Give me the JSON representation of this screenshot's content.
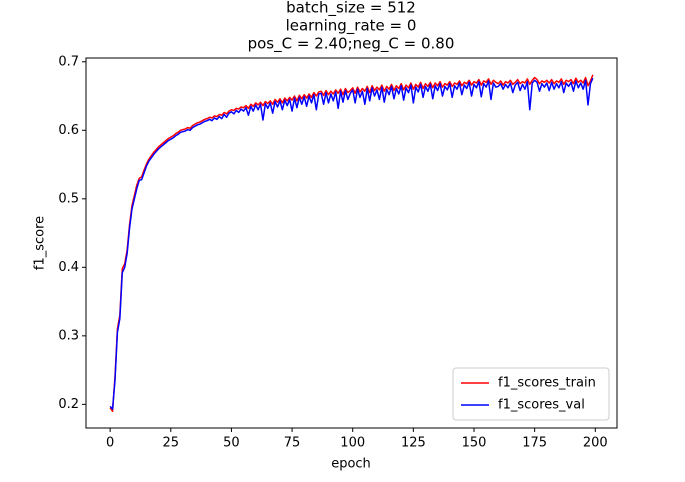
{
  "chart_data": {
    "type": "line",
    "title": [
      "batch_size = 512",
      "learning_rate = 0",
      "pos_C = 2.40;neg_C = 0.80"
    ],
    "xlabel": "epoch",
    "ylabel": "f1_score",
    "xlim": [
      -9.95,
      208.95
    ],
    "ylim": [
      0.1655,
      0.7055
    ],
    "xticks": [
      0,
      25,
      50,
      75,
      100,
      125,
      150,
      175,
      200
    ],
    "yticks": [
      0.2,
      0.3,
      0.4,
      0.5,
      0.6,
      0.7
    ],
    "legend": "lower right",
    "x": [
      0,
      1,
      2,
      3,
      4,
      5,
      6,
      7,
      8,
      9,
      10,
      11,
      12,
      13,
      14,
      15,
      16,
      17,
      18,
      19,
      20,
      21,
      22,
      23,
      24,
      25,
      26,
      27,
      28,
      29,
      30,
      31,
      32,
      33,
      34,
      35,
      36,
      37,
      38,
      39,
      40,
      41,
      42,
      43,
      44,
      45,
      46,
      47,
      48,
      49,
      50,
      51,
      52,
      53,
      54,
      55,
      56,
      57,
      58,
      59,
      60,
      61,
      62,
      63,
      64,
      65,
      66,
      67,
      68,
      69,
      70,
      71,
      72,
      73,
      74,
      75,
      76,
      77,
      78,
      79,
      80,
      81,
      82,
      83,
      84,
      85,
      86,
      87,
      88,
      89,
      90,
      91,
      92,
      93,
      94,
      95,
      96,
      97,
      98,
      99,
      100,
      101,
      102,
      103,
      104,
      105,
      106,
      107,
      108,
      109,
      110,
      111,
      112,
      113,
      114,
      115,
      116,
      117,
      118,
      119,
      120,
      121,
      122,
      123,
      124,
      125,
      126,
      127,
      128,
      129,
      130,
      131,
      132,
      133,
      134,
      135,
      136,
      137,
      138,
      139,
      140,
      141,
      142,
      143,
      144,
      145,
      146,
      147,
      148,
      149,
      150,
      151,
      152,
      153,
      154,
      155,
      156,
      157,
      158,
      159,
      160,
      161,
      162,
      163,
      164,
      165,
      166,
      167,
      168,
      169,
      170,
      171,
      172,
      173,
      174,
      175,
      176,
      177,
      178,
      179,
      180,
      181,
      182,
      183,
      184,
      185,
      186,
      187,
      188,
      189,
      190,
      191,
      192,
      193,
      194,
      195,
      196,
      197,
      198,
      199
    ],
    "series": [
      {
        "name": "f1_scores_train",
        "color": "#ff0000",
        "values": [
          0.195,
          0.19,
          0.24,
          0.31,
          0.33,
          0.398,
          0.405,
          0.425,
          0.462,
          0.49,
          0.505,
          0.52,
          0.53,
          0.532,
          0.542,
          0.551,
          0.558,
          0.563,
          0.568,
          0.572,
          0.576,
          0.579,
          0.582,
          0.585,
          0.588,
          0.59,
          0.592,
          0.595,
          0.597,
          0.6,
          0.601,
          0.602,
          0.604,
          0.603,
          0.607,
          0.609,
          0.611,
          0.612,
          0.614,
          0.616,
          0.617,
          0.619,
          0.618,
          0.621,
          0.62,
          0.623,
          0.622,
          0.626,
          0.624,
          0.628,
          0.63,
          0.629,
          0.632,
          0.631,
          0.634,
          0.633,
          0.636,
          0.632,
          0.638,
          0.635,
          0.64,
          0.637,
          0.641,
          0.636,
          0.642,
          0.639,
          0.643,
          0.638,
          0.645,
          0.641,
          0.646,
          0.64,
          0.647,
          0.643,
          0.648,
          0.644,
          0.65,
          0.643,
          0.651,
          0.646,
          0.652,
          0.647,
          0.653,
          0.648,
          0.655,
          0.65,
          0.656,
          0.657,
          0.651,
          0.658,
          0.652,
          0.657,
          0.653,
          0.659,
          0.654,
          0.66,
          0.652,
          0.661,
          0.655,
          0.658,
          0.662,
          0.654,
          0.663,
          0.656,
          0.661,
          0.657,
          0.664,
          0.655,
          0.665,
          0.658,
          0.663,
          0.659,
          0.666,
          0.657,
          0.664,
          0.66,
          0.667,
          0.658,
          0.665,
          0.661,
          0.668,
          0.659,
          0.666,
          0.662,
          0.669,
          0.66,
          0.667,
          0.663,
          0.67,
          0.661,
          0.668,
          0.664,
          0.67,
          0.662,
          0.669,
          0.665,
          0.671,
          0.663,
          0.668,
          0.666,
          0.671,
          0.664,
          0.669,
          0.667,
          0.672,
          0.665,
          0.67,
          0.668,
          0.673,
          0.666,
          0.671,
          0.669,
          0.674,
          0.666,
          0.672,
          0.67,
          0.675,
          0.667,
          0.673,
          0.67,
          0.668,
          0.672,
          0.666,
          0.671,
          0.669,
          0.673,
          0.667,
          0.67,
          0.674,
          0.668,
          0.671,
          0.669,
          0.675,
          0.667,
          0.673,
          0.677,
          0.674,
          0.668,
          0.672,
          0.67,
          0.673,
          0.669,
          0.674,
          0.668,
          0.672,
          0.67,
          0.675,
          0.667,
          0.673,
          0.671,
          0.674,
          0.668,
          0.676,
          0.67,
          0.673,
          0.669,
          0.677,
          0.665,
          0.672,
          0.681
        ]
      },
      {
        "name": "f1_scores_val",
        "color": "#0000ff",
        "values": [
          0.197,
          0.193,
          0.235,
          0.305,
          0.325,
          0.392,
          0.4,
          0.42,
          0.457,
          0.485,
          0.5,
          0.515,
          0.527,
          0.528,
          0.538,
          0.548,
          0.555,
          0.56,
          0.565,
          0.569,
          0.573,
          0.576,
          0.579,
          0.582,
          0.585,
          0.587,
          0.589,
          0.592,
          0.594,
          0.597,
          0.598,
          0.599,
          0.601,
          0.6,
          0.604,
          0.606,
          0.608,
          0.609,
          0.611,
          0.613,
          0.614,
          0.616,
          0.614,
          0.618,
          0.616,
          0.62,
          0.617,
          0.623,
          0.619,
          0.625,
          0.627,
          0.624,
          0.629,
          0.626,
          0.631,
          0.628,
          0.633,
          0.622,
          0.635,
          0.628,
          0.637,
          0.63,
          0.638,
          0.615,
          0.639,
          0.632,
          0.64,
          0.625,
          0.642,
          0.634,
          0.643,
          0.63,
          0.644,
          0.636,
          0.645,
          0.628,
          0.647,
          0.633,
          0.648,
          0.638,
          0.649,
          0.635,
          0.65,
          0.64,
          0.652,
          0.63,
          0.653,
          0.654,
          0.638,
          0.655,
          0.64,
          0.653,
          0.643,
          0.656,
          0.632,
          0.657,
          0.641,
          0.658,
          0.645,
          0.654,
          0.659,
          0.64,
          0.66,
          0.648,
          0.657,
          0.638,
          0.661,
          0.643,
          0.662,
          0.65,
          0.659,
          0.645,
          0.663,
          0.641,
          0.66,
          0.652,
          0.664,
          0.646,
          0.661,
          0.653,
          0.665,
          0.644,
          0.662,
          0.655,
          0.666,
          0.64,
          0.663,
          0.656,
          0.667,
          0.648,
          0.664,
          0.657,
          0.667,
          0.646,
          0.665,
          0.658,
          0.668,
          0.65,
          0.664,
          0.659,
          0.668,
          0.648,
          0.665,
          0.66,
          0.669,
          0.652,
          0.666,
          0.661,
          0.67,
          0.65,
          0.667,
          0.662,
          0.671,
          0.649,
          0.668,
          0.663,
          0.672,
          0.645,
          0.669,
          0.663,
          0.664,
          0.668,
          0.66,
          0.667,
          0.662,
          0.669,
          0.655,
          0.666,
          0.67,
          0.658,
          0.667,
          0.66,
          0.671,
          0.63,
          0.669,
          0.673,
          0.67,
          0.657,
          0.668,
          0.663,
          0.669,
          0.658,
          0.67,
          0.66,
          0.668,
          0.662,
          0.671,
          0.655,
          0.669,
          0.664,
          0.67,
          0.657,
          0.672,
          0.662,
          0.669,
          0.66,
          0.673,
          0.637,
          0.668,
          0.676
        ]
      }
    ]
  }
}
